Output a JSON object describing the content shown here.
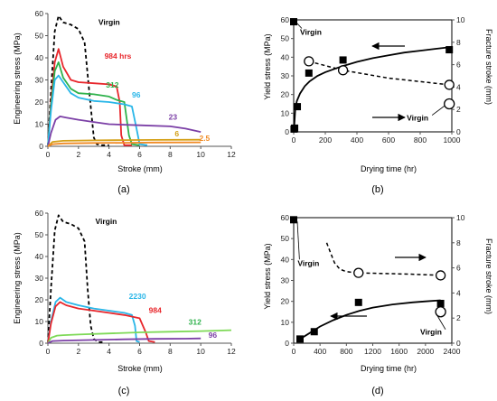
{
  "chart_data": [
    {
      "id": "a",
      "type": "line",
      "panel_label": "(a)",
      "xlabel": "Stroke (mm)",
      "ylabel": "Engineering stress (MPa)",
      "xlim": [
        0,
        12
      ],
      "ylim": [
        0,
        60
      ],
      "xticks": [
        0,
        2,
        4,
        6,
        8,
        10,
        12
      ],
      "yticks": [
        0,
        10,
        20,
        30,
        40,
        50,
        60
      ],
      "series": [
        {
          "name": "Virgin",
          "color": "#000000",
          "dash": "dashed",
          "x": [
            0,
            0.2,
            0.45,
            0.7,
            1.0,
            1.5,
            2.0,
            2.4,
            2.7,
            3.0,
            3.2,
            3.5,
            4.0
          ],
          "y": [
            0,
            25,
            52,
            59,
            56,
            55,
            53,
            47,
            25,
            4,
            1,
            0.5,
            0.5
          ]
        },
        {
          "name": "984 hrs",
          "color": "#e8262b",
          "dash": "solid",
          "x": [
            0,
            0.2,
            0.45,
            0.7,
            1.0,
            1.5,
            2.0,
            3.0,
            4.0,
            4.5,
            4.7,
            4.8,
            5.0,
            5.5
          ],
          "y": [
            0,
            20,
            38,
            44,
            36,
            30,
            29,
            28.5,
            28,
            27,
            20,
            5,
            0.5,
            0.5
          ]
        },
        {
          "name": "312",
          "color": "#2fb24c",
          "dash": "solid",
          "x": [
            0,
            0.2,
            0.45,
            0.7,
            1.0,
            1.5,
            2.0,
            3.0,
            4.0,
            4.5,
            5.0,
            5.3,
            5.5,
            6.0
          ],
          "y": [
            0,
            18,
            34,
            38,
            31,
            26,
            24,
            23.5,
            22.5,
            21,
            20,
            5,
            1,
            0.5
          ]
        },
        {
          "name": "96",
          "color": "#29b6e8",
          "dash": "solid",
          "x": [
            0,
            0.2,
            0.45,
            0.7,
            1.0,
            1.5,
            2.0,
            3.0,
            4.0,
            5.0,
            5.5,
            5.8,
            6.0,
            6.5
          ],
          "y": [
            0,
            16,
            30,
            32,
            29,
            24,
            22,
            20.5,
            20,
            19,
            18,
            8,
            1,
            0.5
          ]
        },
        {
          "name": "23",
          "color": "#7b3fa6",
          "dash": "solid",
          "x": [
            0,
            0.2,
            0.5,
            0.8,
            1.2,
            2.0,
            3.0,
            4.0,
            6.0,
            8.0,
            9.0,
            10.0
          ],
          "y": [
            0,
            6,
            12,
            13.5,
            13,
            12,
            11,
            10,
            9.5,
            9,
            8,
            6.5
          ]
        },
        {
          "name": "6",
          "color": "#d4a017",
          "dash": "solid",
          "x": [
            0,
            0.3,
            1.0,
            3.0,
            5.0,
            7.0,
            10.0
          ],
          "y": [
            0,
            2.0,
            2.5,
            2.7,
            2.8,
            2.9,
            3.0
          ]
        },
        {
          "name": "2.5",
          "color": "#f08a24",
          "dash": "solid",
          "x": [
            0,
            0.3,
            1.0,
            3.0,
            5.0,
            7.0,
            10.0
          ],
          "y": [
            0,
            1.0,
            1.3,
            1.5,
            1.6,
            1.7,
            1.8
          ]
        }
      ],
      "labels": [
        {
          "text": "Virgin",
          "x": 3.3,
          "y": 55,
          "color": "#000000"
        },
        {
          "text": "984 hrs",
          "x": 3.7,
          "y": 39.5,
          "color": "#e8262b"
        },
        {
          "text": "312",
          "x": 3.8,
          "y": 26.5,
          "color": "#2fb24c"
        },
        {
          "text": "96",
          "x": 5.5,
          "y": 22,
          "color": "#29b6e8"
        },
        {
          "text": "23",
          "x": 7.9,
          "y": 12,
          "color": "#7b3fa6"
        },
        {
          "text": "6",
          "x": 8.3,
          "y": 4.5,
          "color": "#d4a017"
        },
        {
          "text": "2.5",
          "x": 9.9,
          "y": 2.5,
          "color": "#f08a24"
        }
      ]
    },
    {
      "id": "b",
      "type": "scatter",
      "panel_label": "(b)",
      "xlabel": "Drying time (hr)",
      "ylabel": "Yield stress (MPa)",
      "y2label": "Fracture stroke (mm)",
      "xlim": [
        0,
        1000
      ],
      "ylim": [
        0,
        60
      ],
      "y2lim": [
        0,
        10
      ],
      "xticks": [
        0,
        200,
        400,
        600,
        800,
        1000
      ],
      "yticks": [
        0,
        10,
        20,
        30,
        40,
        50,
        60
      ],
      "y2ticks": [
        0,
        2,
        4,
        6,
        8,
        10
      ],
      "yield_points": {
        "x": [
          0,
          2.5,
          6,
          23,
          96,
          312,
          984
        ],
        "y": [
          59,
          1.5,
          2,
          13.5,
          31.5,
          38.5,
          44
        ]
      },
      "yield_fit": {
        "x": [
          1,
          10,
          20,
          40,
          70,
          100,
          150,
          200,
          300,
          400,
          500,
          600,
          700,
          800,
          900,
          1000
        ],
        "y": [
          0,
          12.5,
          16.5,
          20.5,
          24.5,
          27,
          30,
          32,
          35,
          37.5,
          39.5,
          41,
          42.5,
          43.5,
          44.5,
          45.5
        ]
      },
      "fracture_points": {
        "x": [
          96,
          312,
          984
        ],
        "y": [
          6.3,
          5.5,
          4.2
        ]
      },
      "fracture_virgin": {
        "x": 984,
        "y": 2.5
      },
      "fracture_fit": {
        "x": [
          96,
          312,
          600,
          984
        ],
        "y": [
          6.3,
          5.5,
          4.8,
          4.2
        ]
      },
      "labels": [
        {
          "text": "Virgin",
          "x": 40,
          "y": 52
        },
        {
          "text": "Virgin",
          "x": 715,
          "y": 6
        }
      ]
    },
    {
      "id": "c",
      "type": "line",
      "panel_label": "(c)",
      "xlabel": "Stroke (mm)",
      "ylabel": "Engineering stress (MPa)",
      "xlim": [
        0,
        12
      ],
      "ylim": [
        0,
        60
      ],
      "xticks": [
        0,
        2,
        4,
        6,
        8,
        10,
        12
      ],
      "yticks": [
        0,
        10,
        20,
        30,
        40,
        50,
        60
      ],
      "series": [
        {
          "name": "Virgin",
          "color": "#000000",
          "dash": "dashed",
          "x": [
            0,
            0.2,
            0.45,
            0.7,
            1.0,
            1.5,
            2.0,
            2.4,
            2.6,
            2.8,
            3.0,
            3.3,
            3.6
          ],
          "y": [
            0,
            25,
            52,
            59,
            56,
            55,
            53,
            47,
            25,
            8,
            2,
            0.5,
            0.5
          ]
        },
        {
          "name": "2230",
          "color": "#29b6e8",
          "dash": "solid",
          "x": [
            0,
            0.2,
            0.5,
            0.8,
            1.2,
            2.0,
            3.0,
            4.0,
            5.0,
            5.5,
            5.7,
            5.8,
            6.0
          ],
          "y": [
            0,
            10,
            19,
            21,
            19,
            17.5,
            16,
            15,
            14,
            13,
            8,
            1,
            0.5
          ]
        },
        {
          "name": "984",
          "color": "#e8262b",
          "dash": "solid",
          "x": [
            0,
            0.2,
            0.5,
            0.8,
            1.2,
            2.0,
            3.0,
            4.0,
            5.0,
            6.0,
            6.4,
            6.6,
            7.0
          ],
          "y": [
            0,
            9,
            17,
            19,
            17.5,
            16,
            15,
            14,
            13,
            11.5,
            5,
            1,
            0.5
          ]
        },
        {
          "name": "312",
          "color": "#7ed957",
          "dash": "solid",
          "x": [
            0,
            0.2,
            0.6,
            1.0,
            2.0,
            4.0,
            6.0,
            8.0,
            10.0,
            11.0,
            12.0
          ],
          "y": [
            0,
            2.5,
            3.5,
            3.7,
            4.0,
            4.5,
            5.0,
            5.3,
            5.6,
            5.8,
            6.0
          ]
        },
        {
          "name": "96",
          "color": "#7b3fa6",
          "dash": "solid",
          "x": [
            0,
            0.3,
            1.0,
            3.0,
            5.0,
            7.0,
            9.0,
            10.0
          ],
          "y": [
            0,
            1.0,
            1.2,
            1.5,
            1.8,
            2.0,
            2.1,
            2.2
          ]
        }
      ],
      "labels": [
        {
          "text": "Virgin",
          "x": 3.1,
          "y": 55,
          "color": "#000000"
        },
        {
          "text": "2230",
          "x": 5.3,
          "y": 20.5,
          "color": "#29b6e8"
        },
        {
          "text": "984",
          "x": 6.6,
          "y": 14,
          "color": "#e8262b"
        },
        {
          "text": "312",
          "x": 9.2,
          "y": 8.5,
          "color": "#2fb24c"
        },
        {
          "text": "96",
          "x": 10.5,
          "y": 2.5,
          "color": "#7b3fa6"
        }
      ]
    },
    {
      "id": "d",
      "type": "scatter",
      "panel_label": "(d)",
      "xlabel": "Drying time (hr)",
      "ylabel": "Yield stress (MPa)",
      "y2label": "Fracture stroke (mm)",
      "xlim": [
        0,
        2400
      ],
      "ylim": [
        0,
        60
      ],
      "y2lim": [
        0,
        10
      ],
      "xticks": [
        0,
        400,
        800,
        1200,
        1600,
        2000,
        2400
      ],
      "yticks": [
        0,
        10,
        20,
        30,
        40,
        50,
        60
      ],
      "y2ticks": [
        0,
        2,
        4,
        6,
        8,
        10
      ],
      "yield_points": {
        "x": [
          0,
          96,
          312,
          984,
          2230
        ],
        "y": [
          59,
          2,
          5.5,
          19.5,
          19
        ]
      },
      "yield_fit": {
        "x": [
          96,
          200,
          400,
          600,
          800,
          1000,
          1200,
          1500,
          1800,
          2000,
          2230
        ],
        "y": [
          2,
          4,
          8,
          11,
          13.5,
          15.5,
          17,
          18.5,
          19.5,
          20,
          20.5
        ]
      },
      "fracture_points": {
        "x": [
          984,
          2230
        ],
        "y": [
          5.6,
          5.4
        ]
      },
      "fracture_virgin": {
        "x": 2230,
        "y": 2.5
      },
      "fracture_fit": {
        "x": [
          500,
          560,
          620,
          700,
          800,
          984,
          1400,
          1800,
          2230
        ],
        "y": [
          8.0,
          7.2,
          6.4,
          5.9,
          5.7,
          5.6,
          5.55,
          5.5,
          5.4
        ]
      },
      "labels": [
        {
          "text": "Virgin",
          "x": 60,
          "y": 37
        },
        {
          "text": "Virgin",
          "x": 1920,
          "y": 4
        }
      ]
    }
  ]
}
